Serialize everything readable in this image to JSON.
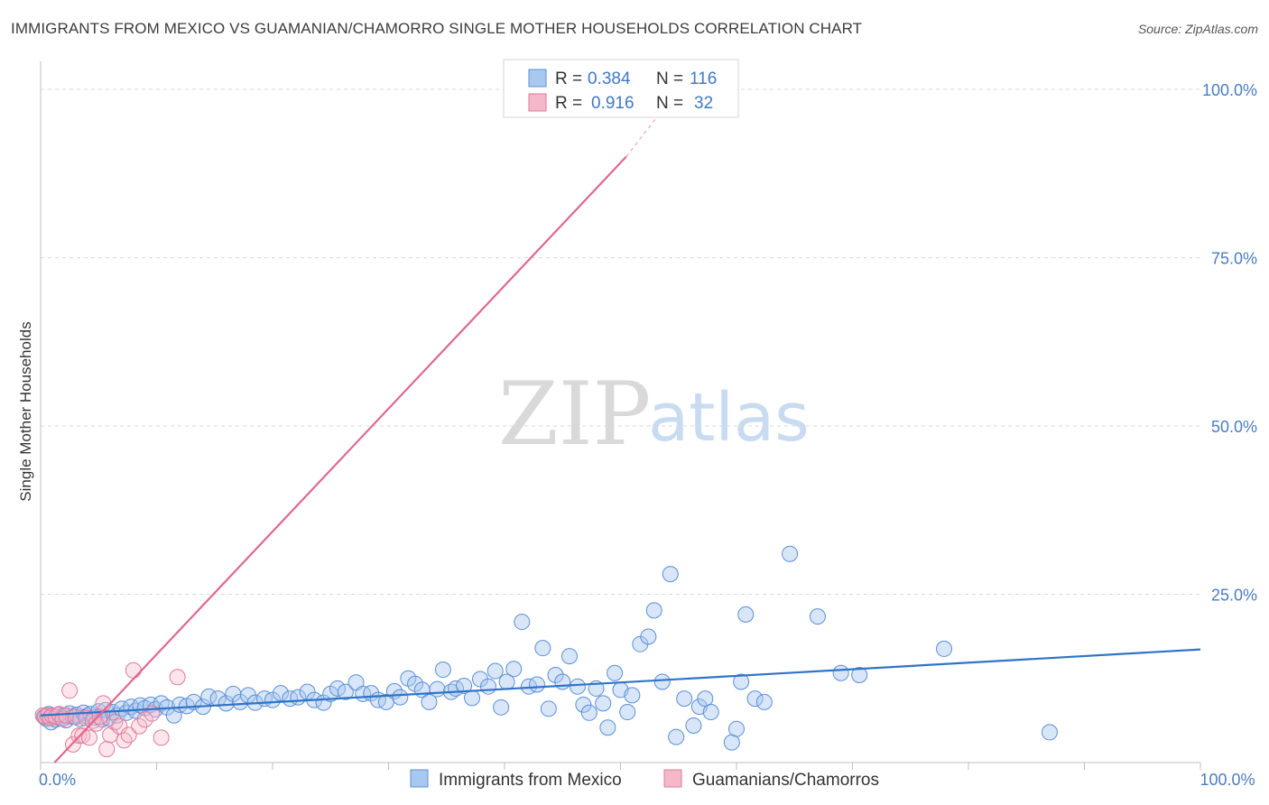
{
  "header": {
    "title": "IMMIGRANTS FROM MEXICO VS GUAMANIAN/CHAMORRO SINGLE MOTHER HOUSEHOLDS CORRELATION CHART",
    "source": "Source: ZipAtlas.com"
  },
  "watermark": {
    "zip": "ZIP",
    "atlas": "atlas"
  },
  "colors": {
    "blue_fill": "#a9c8ef",
    "blue_stroke": "#5b8fd6",
    "blue_line": "#2f74c8",
    "pink_fill": "#f5b8c9",
    "pink_stroke": "#e07a9b",
    "pink_line": "#e0678f",
    "grid": "#d9d9d9",
    "tick_text": "#4a7cc4"
  },
  "stats_box": {
    "rows": [
      {
        "r_label": "R =",
        "r_value": "0.384",
        "n_label": "N =",
        "n_value": "116"
      },
      {
        "r_label": "R =",
        "r_value": "0.916",
        "n_label": "N =",
        "n_value": "32"
      }
    ]
  },
  "legend": {
    "items": [
      {
        "label": "Immigrants from Mexico"
      },
      {
        "label": "Guamanians/Chamorros"
      }
    ]
  },
  "chart_data": {
    "type": "scatter",
    "title": "IMMIGRANTS FROM MEXICO VS GUAMANIAN/CHAMORRO SINGLE MOTHER HOUSEHOLDS CORRELATION CHART",
    "xlabel": "",
    "ylabel": "Single Mother Households",
    "xlim": [
      0,
      100
    ],
    "ylim": [
      0,
      102
    ],
    "x_tick_labels": [
      {
        "value": 0,
        "label": "0.0%"
      },
      {
        "value": 100,
        "label": "100.0%"
      }
    ],
    "y_tick_labels": [
      {
        "value": 25,
        "label": "25.0%"
      },
      {
        "value": 50,
        "label": "50.0%"
      },
      {
        "value": 75,
        "label": "75.0%"
      },
      {
        "value": 100,
        "label": "100.0%"
      }
    ],
    "series": [
      {
        "name": "Immigrants from Mexico",
        "R": 0.384,
        "N": 116,
        "trendline": {
          "x": [
            0,
            100
          ],
          "y": [
            7.0,
            16.8
          ]
        },
        "points": [
          [
            0.3,
            6.8
          ],
          [
            0.5,
            6.5
          ],
          [
            0.7,
            7.2
          ],
          [
            0.9,
            6.0
          ],
          [
            1.1,
            6.9
          ],
          [
            1.3,
            6.4
          ],
          [
            1.5,
            7.1
          ],
          [
            1.7,
            6.6
          ],
          [
            2.0,
            7.0
          ],
          [
            2.2,
            6.3
          ],
          [
            2.5,
            7.3
          ],
          [
            2.8,
            6.8
          ],
          [
            3.1,
            7.1
          ],
          [
            3.4,
            6.5
          ],
          [
            3.7,
            7.4
          ],
          [
            4.0,
            6.9
          ],
          [
            4.3,
            7.2
          ],
          [
            4.6,
            6.7
          ],
          [
            5.0,
            7.6
          ],
          [
            5.3,
            6.4
          ],
          [
            5.6,
            7.8
          ],
          [
            5.9,
            6.6
          ],
          [
            6.2,
            7.5
          ],
          [
            6.6,
            7.0
          ],
          [
            7.0,
            8.0
          ],
          [
            7.4,
            7.4
          ],
          [
            7.8,
            8.3
          ],
          [
            8.2,
            7.7
          ],
          [
            8.6,
            8.5
          ],
          [
            9.0,
            8.1
          ],
          [
            9.5,
            8.6
          ],
          [
            9.9,
            7.9
          ],
          [
            10.4,
            8.8
          ],
          [
            10.9,
            8.2
          ],
          [
            11.5,
            7.0
          ],
          [
            12.0,
            8.6
          ],
          [
            12.6,
            8.4
          ],
          [
            13.2,
            9.0
          ],
          [
            14.0,
            8.3
          ],
          [
            14.5,
            9.8
          ],
          [
            15.3,
            9.5
          ],
          [
            16.0,
            8.8
          ],
          [
            16.6,
            10.2
          ],
          [
            17.2,
            9.0
          ],
          [
            17.9,
            10.0
          ],
          [
            18.5,
            8.9
          ],
          [
            19.3,
            9.5
          ],
          [
            20.0,
            9.3
          ],
          [
            20.7,
            10.3
          ],
          [
            21.5,
            9.5
          ],
          [
            22.2,
            9.7
          ],
          [
            23.0,
            10.5
          ],
          [
            23.6,
            9.3
          ],
          [
            24.4,
            8.9
          ],
          [
            25.0,
            10.2
          ],
          [
            25.6,
            11.0
          ],
          [
            26.3,
            10.5
          ],
          [
            27.2,
            11.9
          ],
          [
            27.8,
            10.2
          ],
          [
            28.5,
            10.3
          ],
          [
            29.1,
            9.3
          ],
          [
            29.8,
            9.0
          ],
          [
            30.5,
            10.6
          ],
          [
            31.0,
            9.7
          ],
          [
            31.7,
            12.5
          ],
          [
            32.3,
            11.7
          ],
          [
            32.9,
            10.8
          ],
          [
            33.5,
            9.0
          ],
          [
            34.2,
            10.9
          ],
          [
            34.7,
            13.8
          ],
          [
            35.4,
            10.5
          ],
          [
            35.8,
            11.0
          ],
          [
            36.5,
            11.4
          ],
          [
            37.2,
            9.6
          ],
          [
            37.9,
            12.4
          ],
          [
            38.6,
            11.3
          ],
          [
            39.2,
            13.6
          ],
          [
            39.7,
            8.2
          ],
          [
            40.2,
            12.0
          ],
          [
            40.8,
            13.9
          ],
          [
            41.5,
            20.9
          ],
          [
            42.1,
            11.3
          ],
          [
            42.8,
            11.6
          ],
          [
            43.3,
            17.0
          ],
          [
            43.8,
            8.0
          ],
          [
            44.4,
            13.0
          ],
          [
            45.0,
            12.0
          ],
          [
            45.6,
            15.8
          ],
          [
            46.3,
            11.3
          ],
          [
            46.8,
            8.6
          ],
          [
            47.3,
            7.4
          ],
          [
            47.9,
            11.0
          ],
          [
            48.5,
            8.8
          ],
          [
            48.9,
            5.2
          ],
          [
            49.5,
            13.3
          ],
          [
            50.0,
            10.8
          ],
          [
            50.6,
            7.5
          ],
          [
            51.0,
            10.0
          ],
          [
            51.7,
            17.6
          ],
          [
            52.4,
            18.7
          ],
          [
            52.9,
            22.6
          ],
          [
            53.6,
            12.0
          ],
          [
            54.3,
            28.0
          ],
          [
            54.8,
            3.8
          ],
          [
            55.5,
            9.5
          ],
          [
            56.3,
            5.5
          ],
          [
            56.8,
            8.3
          ],
          [
            57.3,
            9.5
          ],
          [
            57.8,
            7.5
          ],
          [
            59.6,
            3.0
          ],
          [
            60.0,
            5.0
          ],
          [
            60.4,
            12.0
          ],
          [
            60.8,
            22.0
          ],
          [
            61.6,
            9.5
          ],
          [
            62.4,
            9.0
          ],
          [
            64.6,
            31.0
          ],
          [
            67.0,
            21.7
          ],
          [
            69.0,
            13.3
          ],
          [
            70.6,
            13.0
          ],
          [
            77.9,
            16.9
          ],
          [
            87.0,
            4.5
          ]
        ]
      },
      {
        "name": "Guamanians/Chamorros",
        "R": 0.916,
        "N": 32,
        "trendline": {
          "x": [
            1.2,
            50.5
          ],
          "y": [
            0.0,
            90.0
          ],
          "dashed_extension": {
            "x": [
              50.5,
              55.0
            ],
            "y": [
              90.0,
              100.0
            ]
          }
        },
        "points": [
          [
            0.2,
            7.0
          ],
          [
            0.4,
            6.8
          ],
          [
            0.6,
            7.0
          ],
          [
            0.8,
            6.6
          ],
          [
            1.0,
            7.0
          ],
          [
            1.3,
            6.8
          ],
          [
            1.6,
            7.2
          ],
          [
            1.9,
            6.5
          ],
          [
            2.2,
            7.0
          ],
          [
            2.5,
            10.7
          ],
          [
            2.8,
            2.7
          ],
          [
            3.0,
            6.8
          ],
          [
            3.3,
            4.0
          ],
          [
            3.6,
            4.0
          ],
          [
            3.9,
            6.6
          ],
          [
            4.2,
            3.7
          ],
          [
            4.5,
            6.2
          ],
          [
            4.8,
            5.8
          ],
          [
            5.1,
            6.8
          ],
          [
            5.4,
            8.8
          ],
          [
            5.7,
            2.0
          ],
          [
            6.0,
            4.1
          ],
          [
            6.4,
            6.0
          ],
          [
            6.8,
            5.4
          ],
          [
            7.2,
            3.3
          ],
          [
            7.6,
            4.1
          ],
          [
            8.0,
            13.7
          ],
          [
            8.5,
            5.4
          ],
          [
            9.0,
            6.4
          ],
          [
            9.6,
            7.3
          ],
          [
            10.4,
            3.7
          ],
          [
            11.8,
            12.7
          ]
        ]
      }
    ]
  }
}
